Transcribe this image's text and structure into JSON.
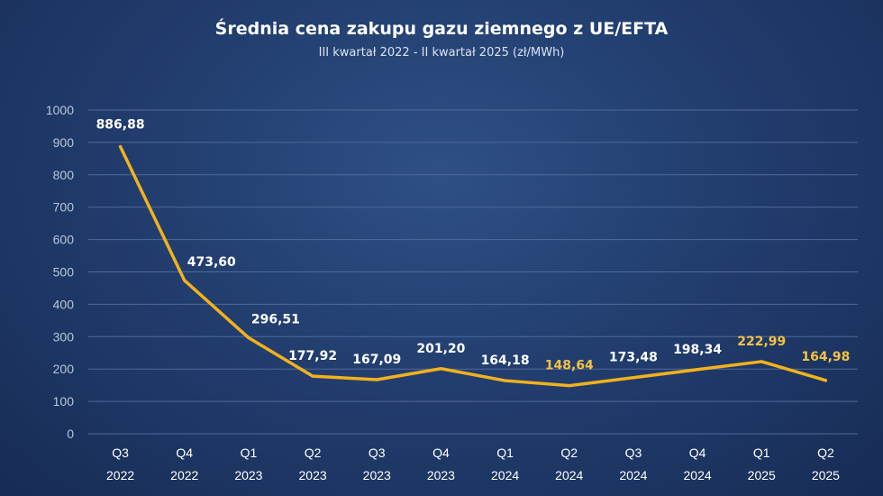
{
  "chart_data": {
    "type": "line",
    "title": "Średnia cena zakupu gazu ziemnego z UE/EFTA",
    "subtitle": "III kwartał 2022 - II kwartał 2025 (zł/MWh)",
    "xlabel": "",
    "ylabel": "",
    "ylim": [
      0,
      1000
    ],
    "yticks": [
      "0",
      "100",
      "200",
      "300",
      "400",
      "500",
      "600",
      "700",
      "800",
      "900",
      "1000"
    ],
    "grid": true,
    "categories": [
      {
        "q": "Q3",
        "year": "2022"
      },
      {
        "q": "Q4",
        "year": "2022"
      },
      {
        "q": "Q1",
        "year": "2023"
      },
      {
        "q": "Q2",
        "year": "2023"
      },
      {
        "q": "Q3",
        "year": "2023"
      },
      {
        "q": "Q4",
        "year": "2023"
      },
      {
        "q": "Q1",
        "year": "2024"
      },
      {
        "q": "Q2",
        "year": "2024"
      },
      {
        "q": "Q3",
        "year": "2024"
      },
      {
        "q": "Q4",
        "year": "2024"
      },
      {
        "q": "Q1",
        "year": "2025"
      },
      {
        "q": "Q2",
        "year": "2025"
      }
    ],
    "values": [
      886.88,
      473.6,
      296.51,
      177.92,
      167.09,
      201.2,
      164.18,
      148.64,
      173.48,
      198.34,
      222.99,
      164.98
    ],
    "labels": [
      "886,88",
      "473,60",
      "296,51",
      "177,92",
      "167,09",
      "201,20",
      "164,18",
      "148,64",
      "173,48",
      "198,34",
      "222,99",
      "164,98"
    ],
    "label_colors": [
      "#ffffff",
      "#ffffff",
      "#ffffff",
      "#ffffff",
      "#ffffff",
      "#ffffff",
      "#ffffff",
      "#f5c342",
      "#ffffff",
      "#ffffff",
      "#f5c342",
      "#f5c342"
    ],
    "line_color": "#f2b21c"
  }
}
